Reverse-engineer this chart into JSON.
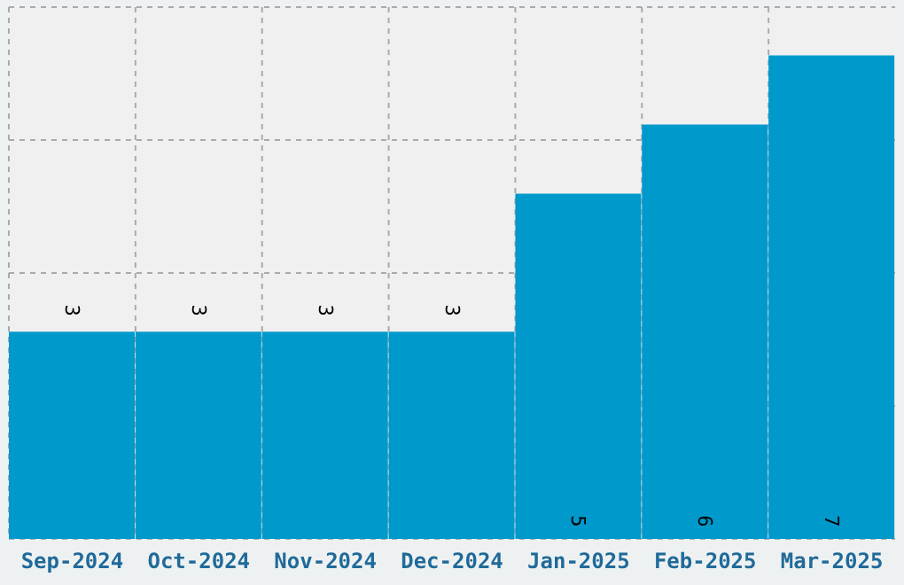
{
  "chart_data": {
    "type": "bar",
    "categories": [
      "Sep-2024",
      "Oct-2024",
      "Nov-2024",
      "Dec-2024",
      "Jan-2025",
      "Feb-2025",
      "Mar-2025"
    ],
    "values": [
      3,
      3,
      3,
      3,
      5,
      6,
      7
    ],
    "color": "#0099cc",
    "data_labels": true,
    "grid": true
  }
}
